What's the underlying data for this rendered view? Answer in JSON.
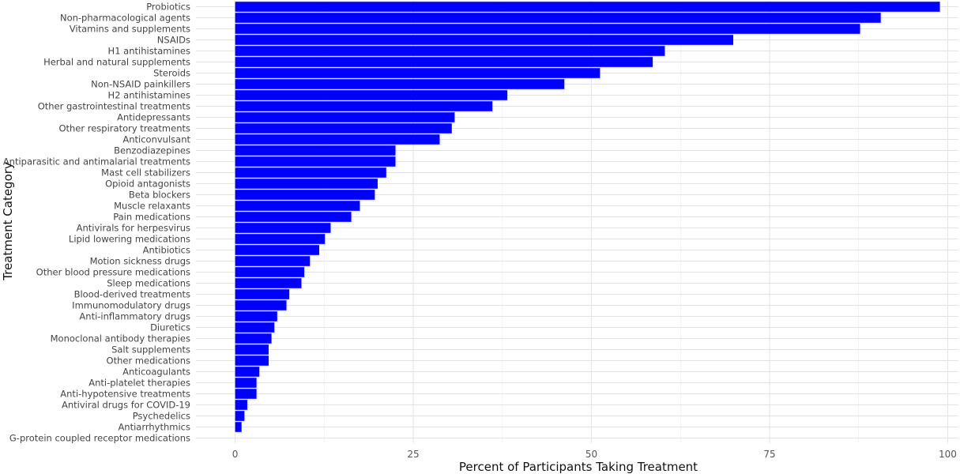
{
  "chart_data": {
    "type": "bar",
    "orientation": "horizontal",
    "xlabel": "Percent of Participants Taking Treatment",
    "ylabel": "Treatment Category",
    "xlim": [
      -5.5,
      101.5
    ],
    "xticks": [
      0,
      25,
      50,
      75,
      100
    ],
    "grid": true,
    "bar_color": "#0000ff",
    "categories": [
      "Probiotics",
      "Non-pharmacological agents",
      "Vitamins and supplements",
      "NSAIDs",
      "H1 antihistamines",
      "Herbal and natural supplements",
      "Steroids",
      "Non-NSAID painkillers",
      "H2 antihistamines",
      "Other gastrointestinal treatments",
      "Antidepressants",
      "Other respiratory treatments",
      "Anticonvulsant",
      "Benzodiazepines",
      "Antiparasitic and antimalarial treatments",
      "Mast cell stabilizers",
      "Opioid antagonists",
      "Beta blockers",
      "Muscle relaxants",
      "Pain medications",
      "Antivirals for herpesvirus",
      "Lipid lowering medications",
      "Antibiotics",
      "Motion sickness drugs",
      "Other blood pressure medications",
      "Sleep medications",
      "Blood-derived treatments",
      "Immunomodulatory drugs",
      "Anti-inflammatory drugs",
      "Diuretics",
      "Monoclonal antibody therapies",
      "Salt supplements",
      "Other medications",
      "Anticoagulants",
      "Anti-platelet therapies",
      "Anti-hypotensive treatments",
      "Antiviral drugs for COVID-19",
      "Psychedelics",
      "Antiarrhythmics",
      "G-protein coupled receptor medications"
    ],
    "values": [
      98.9,
      90.6,
      87.7,
      69.9,
      60.3,
      58.6,
      51.2,
      46.2,
      38.2,
      36.1,
      30.8,
      30.4,
      28.7,
      22.5,
      22.5,
      21.2,
      20.0,
      19.6,
      17.5,
      16.3,
      13.4,
      12.6,
      11.8,
      10.5,
      9.7,
      9.3,
      7.6,
      7.2,
      5.9,
      5.5,
      5.1,
      4.7,
      4.7,
      3.4,
      3.0,
      3.0,
      1.7,
      1.3,
      0.9,
      0.0
    ]
  }
}
